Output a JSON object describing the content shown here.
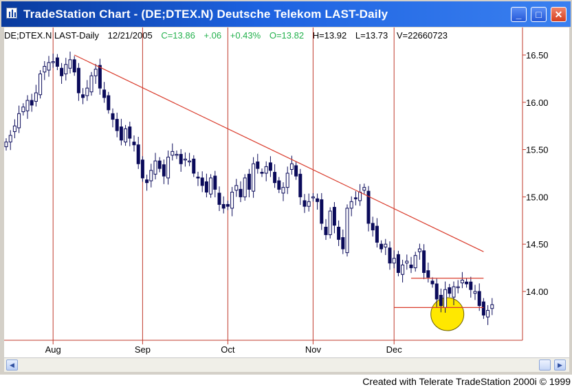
{
  "window": {
    "title": "TradeStation Chart - (DE;DTEX.N) Deutsche Telekom LAST-Daily",
    "minimize_glyph": "_",
    "maximize_glyph": "□",
    "close_glyph": "✕"
  },
  "status_line": {
    "symbol": "DE;DTEX.N LAST-Daily",
    "date": "12/21/2005",
    "close": "C=13.86",
    "change": "+.06",
    "change_pct": "+0.43%",
    "open": "O=13.82",
    "high": "H=13.92",
    "low": "L=13.73",
    "volume": "V=22660723"
  },
  "footer": {
    "credit": "Created with Telerate TradeStation 2000i © 1999"
  },
  "colors": {
    "title_bar": "#1d62e0",
    "grid_line": "#c0392b",
    "trend_line": "#d93a2a",
    "candle": "#0a0a5a",
    "status_green": "#22b14c",
    "highlight_circle": "#ffe800"
  },
  "chart_data": {
    "type": "candlestick",
    "title": "",
    "xlabel": "",
    "ylabel": "",
    "ylim": [
      13.5,
      16.75
    ],
    "yticks": [
      "16.50",
      "16.00",
      "15.50",
      "15.00",
      "14.50",
      "14.00"
    ],
    "xticks": [
      {
        "label": "Aug",
        "bar_index": 11
      },
      {
        "label": "Sep",
        "bar_index": 32
      },
      {
        "label": "Oct",
        "bar_index": 52
      },
      {
        "label": "Nov",
        "bar_index": 72
      },
      {
        "label": "Dec",
        "bar_index": 91
      }
    ],
    "grid": "vertical lines at month starts",
    "closes": [
      15.58,
      15.65,
      15.75,
      15.88,
      15.95,
      16.02,
      15.97,
      16.1,
      16.3,
      16.38,
      16.42,
      16.43,
      16.38,
      16.28,
      16.4,
      16.45,
      16.32,
      16.1,
      16.05,
      16.15,
      16.28,
      16.35,
      16.15,
      16.05,
      15.92,
      15.82,
      15.7,
      15.6,
      15.72,
      15.62,
      15.55,
      15.35,
      15.2,
      15.15,
      15.28,
      15.38,
      15.3,
      15.22,
      15.42,
      15.48,
      15.45,
      15.35,
      15.4,
      15.38,
      15.25,
      15.2,
      15.12,
      15.05,
      15.2,
      15.08,
      14.92,
      14.88,
      14.9,
      15.05,
      15.12,
      15.0,
      15.2,
      15.08,
      15.35,
      15.3,
      15.25,
      15.32,
      15.28,
      15.15,
      15.08,
      15.1,
      15.25,
      15.35,
      15.22,
      15.0,
      14.9,
      14.95,
      15.0,
      14.95,
      14.72,
      14.6,
      14.85,
      14.7,
      14.55,
      14.45,
      14.88,
      14.95,
      14.98,
      15.05,
      15.1,
      14.72,
      14.65,
      14.52,
      14.45,
      14.5,
      14.3,
      14.35,
      14.2,
      14.28,
      14.32,
      14.25,
      14.38,
      14.45,
      14.2,
      14.15,
      14.08,
      13.92,
      13.85,
      14.02,
      13.98,
      14.05,
      14.05,
      14.12,
      14.08,
      14.02,
      14.0,
      13.85,
      13.75,
      13.8,
      13.86
    ],
    "trend_lines": [
      {
        "from": {
          "bar_index": 16,
          "price": 16.5
        },
        "to": {
          "bar_index": 112,
          "price": 14.42
        }
      },
      {
        "from": {
          "bar_index": 95,
          "price": 14.14
        },
        "to": {
          "bar_index": 112,
          "price": 14.14
        }
      },
      {
        "from": {
          "bar_index": 91,
          "price": 13.83
        },
        "to": {
          "bar_index": 112,
          "price": 13.83
        }
      }
    ],
    "highlight": {
      "bar_index": 103.5,
      "price": 13.76
    }
  }
}
